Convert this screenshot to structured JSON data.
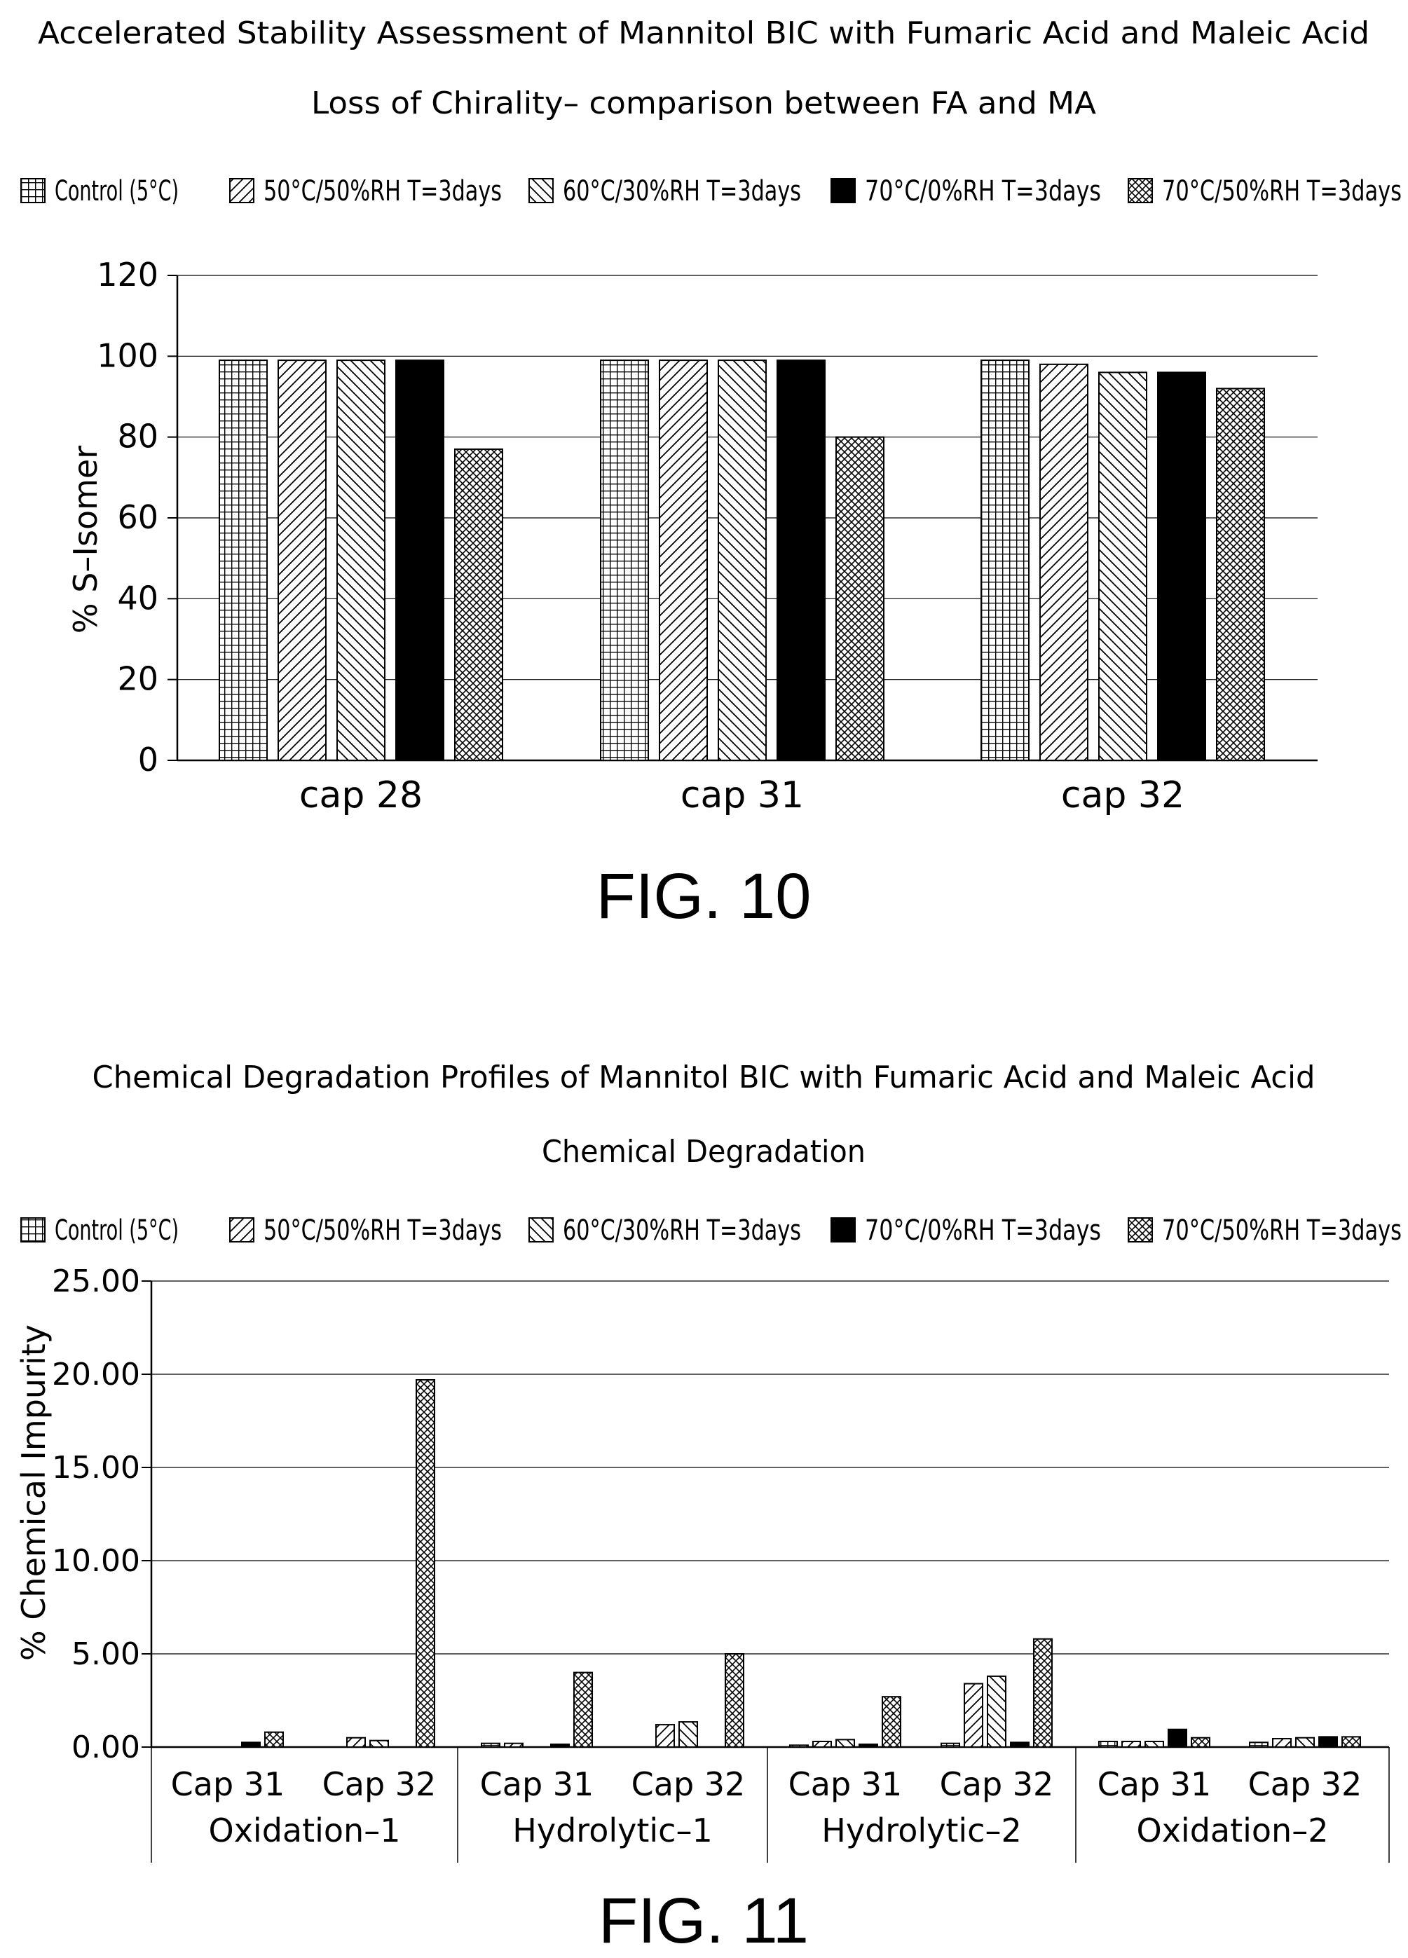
{
  "chart_data": [
    {
      "type": "bar",
      "title": "Accelerated Stability Assessment of Mannitol BIC with Fumaric Acid and Maleic Acid",
      "subtitle": "Loss of Chirality– comparison between FA and MA",
      "xlabel": "",
      "ylabel": "% S–Isomer",
      "ylim": [
        0,
        120
      ],
      "yticks": [
        "0",
        "20",
        "40",
        "60",
        "80",
        "100",
        "120"
      ],
      "grid": true,
      "legend_position": "top",
      "categories": [
        "cap 28",
        "cap 31",
        "cap 32"
      ],
      "series": [
        {
          "name": "Control (5°C)",
          "pattern": "grid",
          "values": [
            99,
            99,
            99
          ]
        },
        {
          "name": "50°C/50%RH T=3days",
          "pattern": "forward-diagonal",
          "values": [
            99,
            99,
            98
          ]
        },
        {
          "name": "60°C/30%RH T=3days",
          "pattern": "back-diagonal",
          "values": [
            99,
            99,
            96
          ]
        },
        {
          "name": "70°C/0%RH T=3days",
          "pattern": "solid",
          "values": [
            99,
            99,
            96
          ]
        },
        {
          "name": "70°C/50%RH T=3days",
          "pattern": "crosshatch",
          "values": [
            77,
            80,
            92
          ]
        }
      ],
      "figure_label": "FIG. 10"
    },
    {
      "type": "bar",
      "title": "Chemical Degradation Profiles of Mannitol BIC with Fumaric Acid and Maleic Acid",
      "subtitle": "Chemical Degradation",
      "xlabel": "",
      "ylabel": "% Chemical Impurity",
      "ylim": [
        0,
        25
      ],
      "yticks": [
        "0.00",
        "5.00",
        "10.00",
        "15.00",
        "20.00",
        "25.00"
      ],
      "grid": true,
      "legend_position": "top",
      "groups": [
        "Oxidation–1",
        "Hydrolytic–1",
        "Hydrolytic–2",
        "Oxidation–2"
      ],
      "categories": [
        "Cap 31",
        "Cap 32",
        "Cap 31",
        "Cap 32",
        "Cap 31",
        "Cap 32",
        "Cap 31",
        "Cap 32"
      ],
      "series": [
        {
          "name": "Control (5°C)",
          "pattern": "grid",
          "values": [
            0,
            0,
            0.2,
            0,
            0.1,
            0.2,
            0.3,
            0.25
          ]
        },
        {
          "name": "50°C/50%RH T=3days",
          "pattern": "forward-diagonal",
          "values": [
            0,
            0.5,
            0.2,
            1.2,
            0.3,
            3.4,
            0.3,
            0.45
          ]
        },
        {
          "name": "60°C/30%RH T=3days",
          "pattern": "back-diagonal",
          "values": [
            0,
            0.35,
            0,
            1.35,
            0.4,
            3.8,
            0.3,
            0.5
          ]
        },
        {
          "name": "70°C/0%RH T=3days",
          "pattern": "solid",
          "values": [
            0.25,
            0,
            0.15,
            0,
            0.15,
            0.25,
            0.95,
            0.55
          ]
        },
        {
          "name": "70°C/50%RH T=3days",
          "pattern": "crosshatch",
          "values": [
            0.8,
            19.7,
            4.0,
            5.0,
            2.7,
            5.8,
            0.5,
            0.55
          ]
        }
      ],
      "figure_label": "FIG. 11"
    }
  ]
}
